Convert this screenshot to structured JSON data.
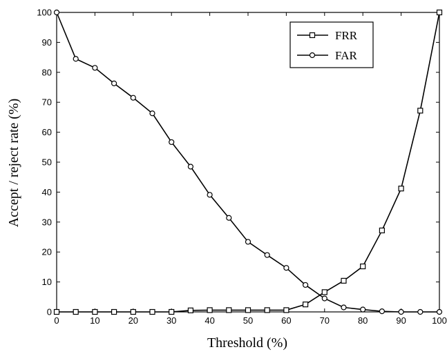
{
  "chart_data": {
    "type": "line",
    "xlabel": "Threshold (%)",
    "ylabel": "Accept / reject  rate (%)",
    "xlim": [
      0,
      100
    ],
    "ylim": [
      0,
      100
    ],
    "x_ticks": [
      "0",
      "10",
      "20",
      "30",
      "40",
      "50",
      "60",
      "70",
      "80",
      "90",
      "100"
    ],
    "y_ticks": [
      "0",
      "10",
      "20",
      "30",
      "40",
      "50",
      "60",
      "70",
      "80",
      "90",
      "100"
    ],
    "grid": false,
    "legend_position": "top-right",
    "x": [
      0,
      5,
      10,
      15,
      20,
      25,
      30,
      35,
      40,
      45,
      50,
      55,
      60,
      65,
      70,
      75,
      80,
      85,
      90,
      95,
      100
    ],
    "series": [
      {
        "name": "FRR",
        "marker": "square",
        "color": "#000000",
        "values": [
          0,
          0,
          0,
          0,
          0,
          0,
          0,
          0.5,
          0.6,
          0.6,
          0.6,
          0.6,
          0.6,
          2.5,
          6.6,
          10.4,
          15.2,
          27.2,
          41.2,
          67.2,
          100
        ]
      },
      {
        "name": "FAR",
        "marker": "circle",
        "color": "#000000",
        "values": [
          100,
          84.5,
          81.5,
          76.3,
          71.5,
          66.3,
          56.7,
          48.5,
          39.1,
          31.4,
          23.4,
          19.0,
          14.7,
          9.0,
          4.5,
          1.5,
          0.8,
          0.2,
          0,
          0,
          0
        ]
      }
    ]
  }
}
